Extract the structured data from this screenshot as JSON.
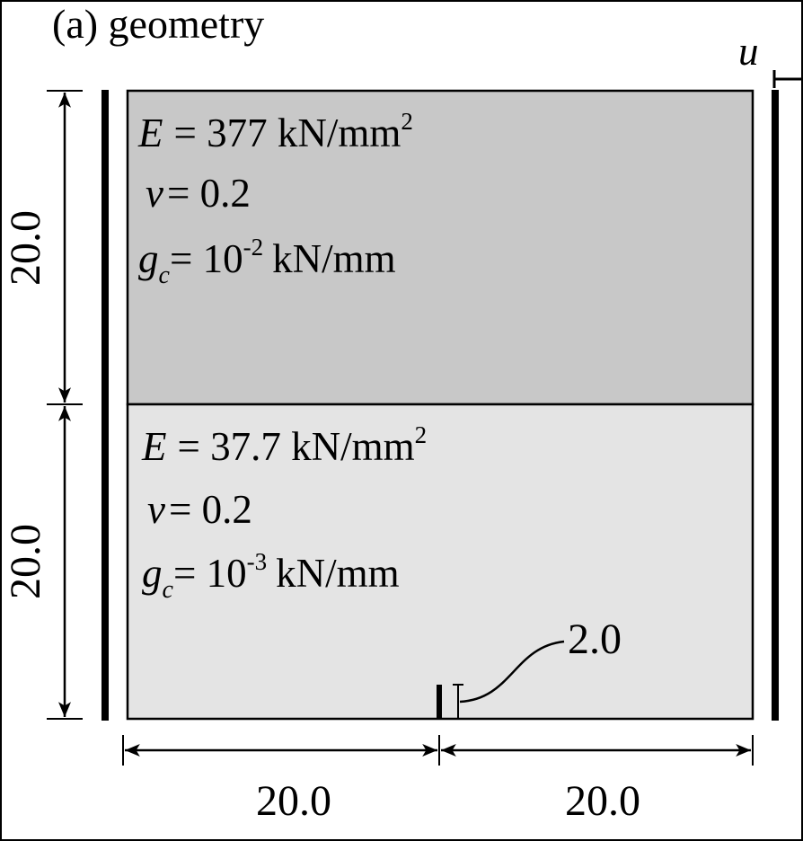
{
  "title": "(a) geometry",
  "load_label": "u",
  "upper_layer": {
    "color": "#c8c8c8",
    "E_symbol": "E",
    "E_text": "= 377 kN/mm",
    "E_exp": "2",
    "nu_symbol": "ν",
    "nu_text": "= 0.2",
    "gc_symbol": "g",
    "gc_sub": "c",
    "gc_eq": "= 10",
    "gc_exp": "-2",
    "gc_unit": "kN/mm"
  },
  "lower_layer": {
    "color": "#e4e4e4",
    "E_symbol": "E",
    "E_text": "= 37.7 kN/mm",
    "E_exp": "2",
    "nu_symbol": "ν",
    "nu_text": "= 0.2",
    "gc_symbol": "g",
    "gc_sub": "c",
    "gc_eq": "= 10",
    "gc_exp": "-3",
    "gc_unit": "kN/mm"
  },
  "dimensions": {
    "upper_height": "20.0",
    "lower_height": "20.0",
    "left_width": "20.0",
    "right_width": "20.0",
    "notch_length": "2.0"
  }
}
